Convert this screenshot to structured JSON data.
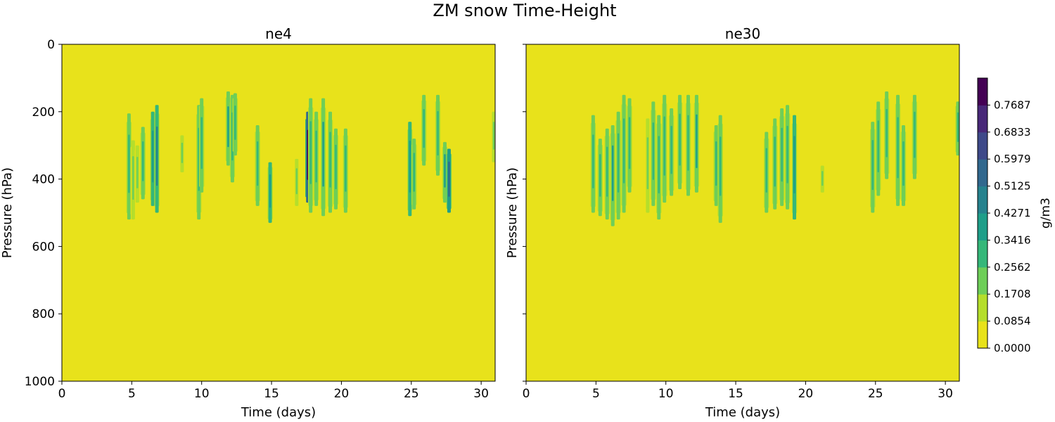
{
  "chart_data": {
    "type": "heatmap",
    "title": "ZM snow Time-Height",
    "panels": [
      {
        "subtitle": "ne4",
        "xlabel": "Time (days)",
        "ylabel": "Pressure (hPa)",
        "xlim": [
          0,
          31
        ],
        "ylim": [
          1000,
          0
        ],
        "xticks": [
          0,
          5,
          10,
          15,
          20,
          25,
          30
        ],
        "yticks": [
          0,
          200,
          400,
          600,
          800,
          1000
        ],
        "show_ytick_labels": true,
        "features": [
          {
            "day": 4.8,
            "top": 205,
            "bottom": 520,
            "value": 0.3
          },
          {
            "day": 5.1,
            "top": 285,
            "bottom": 520,
            "value": 0.22
          },
          {
            "day": 5.4,
            "top": 300,
            "bottom": 470,
            "value": 0.2
          },
          {
            "day": 5.8,
            "top": 245,
            "bottom": 460,
            "value": 0.32
          },
          {
            "day": 6.5,
            "top": 200,
            "bottom": 480,
            "value": 0.38
          },
          {
            "day": 6.8,
            "top": 180,
            "bottom": 500,
            "value": 0.45
          },
          {
            "day": 8.6,
            "top": 270,
            "bottom": 380,
            "value": 0.18
          },
          {
            "day": 9.8,
            "top": 180,
            "bottom": 520,
            "value": 0.32
          },
          {
            "day": 10.0,
            "top": 160,
            "bottom": 440,
            "value": 0.28
          },
          {
            "day": 11.9,
            "top": 140,
            "bottom": 360,
            "value": 0.36
          },
          {
            "day": 12.2,
            "top": 150,
            "bottom": 410,
            "value": 0.3
          },
          {
            "day": 12.4,
            "top": 145,
            "bottom": 330,
            "value": 0.34
          },
          {
            "day": 14.0,
            "top": 240,
            "bottom": 480,
            "value": 0.28
          },
          {
            "day": 14.9,
            "top": 350,
            "bottom": 530,
            "value": 0.42
          },
          {
            "day": 16.8,
            "top": 340,
            "bottom": 480,
            "value": 0.22
          },
          {
            "day": 17.6,
            "top": 200,
            "bottom": 470,
            "value": 0.78
          },
          {
            "day": 17.8,
            "top": 160,
            "bottom": 500,
            "value": 0.34
          },
          {
            "day": 18.2,
            "top": 200,
            "bottom": 480,
            "value": 0.3
          },
          {
            "day": 18.7,
            "top": 160,
            "bottom": 510,
            "value": 0.36
          },
          {
            "day": 19.2,
            "top": 200,
            "bottom": 500,
            "value": 0.32
          },
          {
            "day": 19.6,
            "top": 250,
            "bottom": 490,
            "value": 0.26
          },
          {
            "day": 20.3,
            "top": 250,
            "bottom": 500,
            "value": 0.3
          },
          {
            "day": 24.9,
            "top": 230,
            "bottom": 510,
            "value": 0.4
          },
          {
            "day": 25.2,
            "top": 280,
            "bottom": 490,
            "value": 0.3
          },
          {
            "day": 25.9,
            "top": 150,
            "bottom": 360,
            "value": 0.28
          },
          {
            "day": 26.9,
            "top": 150,
            "bottom": 390,
            "value": 0.34
          },
          {
            "day": 27.4,
            "top": 290,
            "bottom": 470,
            "value": 0.36
          },
          {
            "day": 27.7,
            "top": 310,
            "bottom": 500,
            "value": 0.58
          },
          {
            "day": 30.9,
            "top": 200,
            "bottom": 350,
            "value": 0.24
          }
        ]
      },
      {
        "subtitle": "ne30",
        "xlabel": "Time (days)",
        "ylabel": "Pressure (hPa)",
        "xlim": [
          0,
          31
        ],
        "ylim": [
          1000,
          0
        ],
        "xticks": [
          0,
          5,
          10,
          15,
          20,
          25,
          30
        ],
        "yticks": [
          0,
          200,
          400,
          600,
          800,
          1000
        ],
        "show_ytick_labels": false,
        "features": [
          {
            "day": 4.8,
            "top": 210,
            "bottom": 500,
            "value": 0.34
          },
          {
            "day": 5.3,
            "top": 280,
            "bottom": 510,
            "value": 0.28
          },
          {
            "day": 5.8,
            "top": 250,
            "bottom": 520,
            "value": 0.3
          },
          {
            "day": 6.2,
            "top": 240,
            "bottom": 540,
            "value": 0.36
          },
          {
            "day": 6.6,
            "top": 200,
            "bottom": 520,
            "value": 0.32
          },
          {
            "day": 7.0,
            "top": 150,
            "bottom": 500,
            "value": 0.34
          },
          {
            "day": 7.4,
            "top": 160,
            "bottom": 440,
            "value": 0.3
          },
          {
            "day": 8.7,
            "top": 220,
            "bottom": 500,
            "value": 0.24
          },
          {
            "day": 9.1,
            "top": 170,
            "bottom": 480,
            "value": 0.32
          },
          {
            "day": 9.5,
            "top": 210,
            "bottom": 520,
            "value": 0.28
          },
          {
            "day": 9.9,
            "top": 150,
            "bottom": 470,
            "value": 0.32
          },
          {
            "day": 10.4,
            "top": 190,
            "bottom": 450,
            "value": 0.28
          },
          {
            "day": 11.0,
            "top": 150,
            "bottom": 430,
            "value": 0.34
          },
          {
            "day": 11.6,
            "top": 150,
            "bottom": 450,
            "value": 0.3
          },
          {
            "day": 12.2,
            "top": 150,
            "bottom": 440,
            "value": 0.36
          },
          {
            "day": 13.6,
            "top": 240,
            "bottom": 480,
            "value": 0.3
          },
          {
            "day": 13.9,
            "top": 210,
            "bottom": 530,
            "value": 0.3
          },
          {
            "day": 17.2,
            "top": 260,
            "bottom": 500,
            "value": 0.28
          },
          {
            "day": 17.8,
            "top": 220,
            "bottom": 490,
            "value": 0.3
          },
          {
            "day": 18.3,
            "top": 190,
            "bottom": 480,
            "value": 0.28
          },
          {
            "day": 18.7,
            "top": 180,
            "bottom": 490,
            "value": 0.3
          },
          {
            "day": 19.2,
            "top": 210,
            "bottom": 520,
            "value": 0.4
          },
          {
            "day": 21.2,
            "top": 360,
            "bottom": 440,
            "value": 0.18
          },
          {
            "day": 24.8,
            "top": 230,
            "bottom": 500,
            "value": 0.32
          },
          {
            "day": 25.2,
            "top": 170,
            "bottom": 450,
            "value": 0.32
          },
          {
            "day": 25.8,
            "top": 140,
            "bottom": 400,
            "value": 0.3
          },
          {
            "day": 26.6,
            "top": 150,
            "bottom": 480,
            "value": 0.28
          },
          {
            "day": 27.0,
            "top": 240,
            "bottom": 480,
            "value": 0.3
          },
          {
            "day": 27.8,
            "top": 150,
            "bottom": 400,
            "value": 0.28
          },
          {
            "day": 30.9,
            "top": 170,
            "bottom": 330,
            "value": 0.34
          }
        ]
      }
    ],
    "colorbar": {
      "label": "g/m3",
      "ticks": [
        "0.0000",
        "0.0854",
        "0.1708",
        "0.2562",
        "0.3416",
        "0.4271",
        "0.5125",
        "0.5979",
        "0.6833",
        "0.7687"
      ],
      "min": 0,
      "max": 0.8541,
      "levels": 10,
      "colormap": "viridis_r"
    }
  }
}
